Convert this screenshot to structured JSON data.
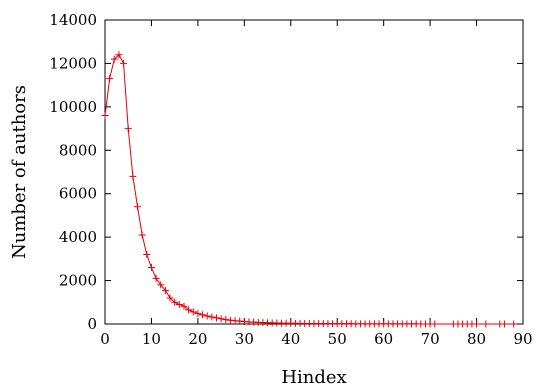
{
  "chart_data": {
    "type": "line",
    "xlabel": "Hindex",
    "ylabel": "Number of authors",
    "xlim": [
      0,
      90
    ],
    "ylim": [
      0,
      14000
    ],
    "grid": false,
    "xticks": [
      "0",
      "10",
      "20",
      "30",
      "40",
      "50",
      "60",
      "70",
      "80",
      "90"
    ],
    "yticks": [
      "0",
      "2000",
      "4000",
      "6000",
      "8000",
      "10000",
      "12000",
      "14000"
    ],
    "series": [
      {
        "color": "#e8000b",
        "marker": "plus",
        "x": [
          0,
          1,
          2,
          3,
          4,
          5,
          6,
          7,
          8,
          9,
          10,
          11,
          12,
          13,
          14,
          15,
          16,
          17,
          18,
          19,
          20,
          21,
          22,
          23,
          24,
          25,
          26,
          27,
          28,
          29,
          30,
          31,
          32,
          33,
          34,
          35,
          36,
          37,
          38,
          39,
          40,
          41,
          42,
          43,
          44,
          45,
          46,
          47,
          48,
          49,
          50,
          51,
          52,
          53,
          54,
          55,
          56,
          57,
          58,
          59,
          60,
          61,
          62,
          63,
          64,
          65,
          66,
          67,
          68,
          69,
          70,
          71,
          75,
          76,
          77,
          78,
          79,
          80,
          82,
          85,
          86,
          88
        ],
        "y": [
          9600,
          11300,
          12200,
          12400,
          12000,
          9000,
          6800,
          5400,
          4100,
          3200,
          2600,
          2100,
          1800,
          1550,
          1200,
          1000,
          900,
          820,
          650,
          560,
          480,
          420,
          370,
          320,
          280,
          240,
          200,
          170,
          150,
          130,
          110,
          95,
          85,
          75,
          65,
          55,
          50,
          45,
          40,
          35,
          30,
          28,
          26,
          24,
          22,
          20,
          18,
          16,
          15,
          14,
          12,
          11,
          10,
          9,
          8,
          8,
          7,
          7,
          6,
          6,
          5,
          5,
          4,
          4,
          4,
          3,
          3,
          3,
          2,
          2,
          2,
          2,
          1,
          1,
          1,
          1,
          1,
          1,
          1,
          1,
          1,
          1
        ]
      }
    ]
  }
}
